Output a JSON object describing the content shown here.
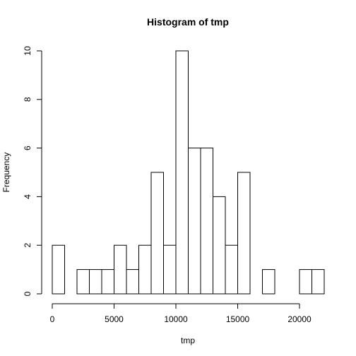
{
  "chart_data": {
    "type": "bar",
    "title": "Histogram of tmp",
    "xlabel": "tmp",
    "ylabel": "Frequency",
    "bin_width": 1000,
    "bins": [
      {
        "start": 0,
        "end": 1000,
        "count": 2
      },
      {
        "start": 1000,
        "end": 2000,
        "count": 0
      },
      {
        "start": 2000,
        "end": 3000,
        "count": 1
      },
      {
        "start": 3000,
        "end": 4000,
        "count": 1
      },
      {
        "start": 4000,
        "end": 5000,
        "count": 1
      },
      {
        "start": 5000,
        "end": 6000,
        "count": 2
      },
      {
        "start": 6000,
        "end": 7000,
        "count": 1
      },
      {
        "start": 7000,
        "end": 8000,
        "count": 2
      },
      {
        "start": 8000,
        "end": 9000,
        "count": 5
      },
      {
        "start": 9000,
        "end": 10000,
        "count": 2
      },
      {
        "start": 10000,
        "end": 11000,
        "count": 10
      },
      {
        "start": 11000,
        "end": 12000,
        "count": 6
      },
      {
        "start": 12000,
        "end": 13000,
        "count": 6
      },
      {
        "start": 13000,
        "end": 14000,
        "count": 4
      },
      {
        "start": 14000,
        "end": 15000,
        "count": 2
      },
      {
        "start": 15000,
        "end": 16000,
        "count": 5
      },
      {
        "start": 16000,
        "end": 17000,
        "count": 0
      },
      {
        "start": 17000,
        "end": 18000,
        "count": 1
      },
      {
        "start": 18000,
        "end": 19000,
        "count": 0
      },
      {
        "start": 19000,
        "end": 20000,
        "count": 0
      },
      {
        "start": 20000,
        "end": 21000,
        "count": 1
      },
      {
        "start": 21000,
        "end": 22000,
        "count": 1
      }
    ],
    "xlim": [
      0,
      22000
    ],
    "ylim": [
      0,
      10
    ],
    "x_ticks": [
      0,
      5000,
      10000,
      15000,
      20000
    ],
    "x_tick_labels": [
      "0",
      "5000",
      "10000",
      "15000",
      "20000"
    ],
    "y_ticks": [
      0,
      2,
      4,
      6,
      8,
      10
    ],
    "y_tick_labels": [
      "0",
      "2",
      "4",
      "6",
      "8",
      "10"
    ],
    "grid": false,
    "bar_fill": "#ffffff",
    "bar_stroke": "#000000"
  }
}
